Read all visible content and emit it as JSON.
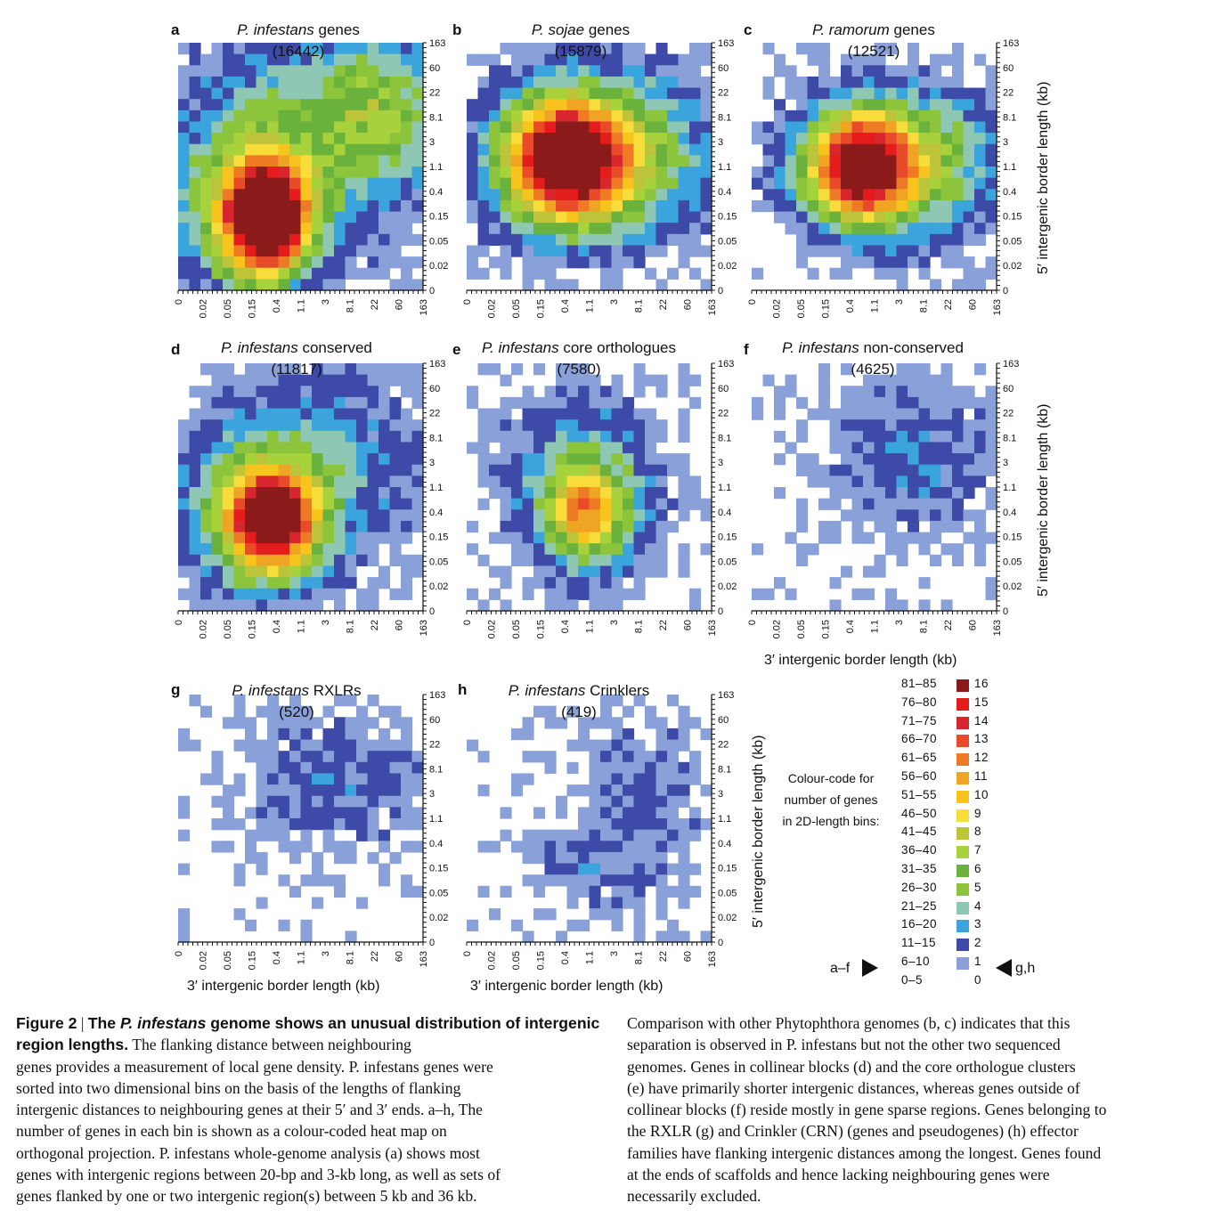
{
  "chart_data": [
    {
      "panel": "a",
      "type": "heatmap",
      "title_italic": "P. infestans",
      "title_rest": " genes",
      "count": "(16442)"
    },
    {
      "panel": "b",
      "type": "heatmap",
      "title_italic": "P. sojae",
      "title_rest": " genes",
      "count": "(15879)"
    },
    {
      "panel": "c",
      "type": "heatmap",
      "title_italic": "P. ramorum",
      "title_rest": " genes",
      "count": "(12521)"
    },
    {
      "panel": "d",
      "type": "heatmap",
      "title_italic": "P. infestans",
      "title_rest": " conserved",
      "count": "(11817)"
    },
    {
      "panel": "e",
      "type": "heatmap",
      "title_italic": "P. infestans",
      "title_rest": " core orthologues",
      "count": "(7580)"
    },
    {
      "panel": "f",
      "type": "heatmap",
      "title_italic": "P. infestans",
      "title_rest": " non-conserved",
      "count": "(4625)"
    },
    {
      "panel": "g",
      "type": "heatmap",
      "title_italic": "P. infestans",
      "title_rest": " RXLRs",
      "count": "(520)"
    },
    {
      "panel": "h",
      "type": "heatmap",
      "title_italic": "P. infestans",
      "title_rest": " Crinklers",
      "count": "(419)"
    }
  ],
  "axis": {
    "ticks": [
      "0",
      "0.02",
      "0.05",
      "0.15",
      "0.4",
      "1.1",
      "3",
      "8.1",
      "22",
      "60",
      "163"
    ],
    "x_label": "3′ intergenic border length (kb)",
    "y_label": "5′ intergenic border length (kb)"
  },
  "legend": {
    "title_lines": [
      "Colour-code for",
      "number of genes",
      "in 2D-length bins:"
    ],
    "ranges": [
      "81–85",
      "76–80",
      "71–75",
      "66–70",
      "61–65",
      "56–60",
      "51–55",
      "46–50",
      "41–45",
      "36–40",
      "31–35",
      "26–30",
      "21–25",
      "16–20",
      "11–15",
      "6–10",
      "0–5"
    ],
    "codes": [
      "16",
      "15",
      "14",
      "13",
      "12",
      "11",
      "10",
      "9",
      "8",
      "7",
      "6",
      "5",
      "4",
      "3",
      "2",
      "1",
      "0"
    ],
    "colors": [
      "#8b1a1a",
      "#e41c1c",
      "#d8262e",
      "#e84a2a",
      "#ee7a26",
      "#f0a424",
      "#f7c31c",
      "#f7dc3a",
      "#bdc43a",
      "#a8d23c",
      "#6ab23c",
      "#8cc43c",
      "#8ec8b4",
      "#3ca4dc",
      "#3e4aa8",
      "#8aa0d8",
      "#ffffff"
    ],
    "left_marker": "a–f",
    "right_marker": "g,h"
  },
  "caption": {
    "fig_label": "Figure 2",
    "sep": " | ",
    "title_pre": "The ",
    "title_it": "P. infestans",
    "title_post": " genome shows an unusual distribution of intergenic region lengths.",
    "left_lines": [
      "The flanking distance between neighbouring",
      "genes provides a measurement of local gene density. P. infestans genes were",
      "sorted into two dimensional bins on the basis of the lengths of flanking",
      "intergenic distances to neighbouring genes at their 5′ and 3′ ends. a–h, The",
      "number of genes in each bin is shown as a colour-coded heat map on",
      "orthogonal projection. P. infestans whole-genome analysis (a) shows most",
      "genes with intergenic regions between 20-bp and 3-kb long, as well as sets of",
      "genes flanked by one or two intergenic region(s) between 5 kb and 36 kb."
    ],
    "right_lines": [
      "Comparison with other Phytophthora genomes (b, c) indicates that this",
      "separation is observed in P. infestans but not the other two sequenced",
      "genomes. Genes in collinear blocks (d) and the core orthologue clusters",
      "(e) have primarily shorter intergenic distances, whereas genes outside of",
      "collinear blocks (f) reside mostly in gene sparse regions. Genes belonging to",
      "the RXLR (g) and Crinkler (CRN) (genes and pseudogenes) (h) effector",
      "families have flanking intergenic distances among the longest. Genes found",
      "at the ends of scaffolds and hence lacking neighbouring genes were",
      "necessarily excluded."
    ]
  }
}
